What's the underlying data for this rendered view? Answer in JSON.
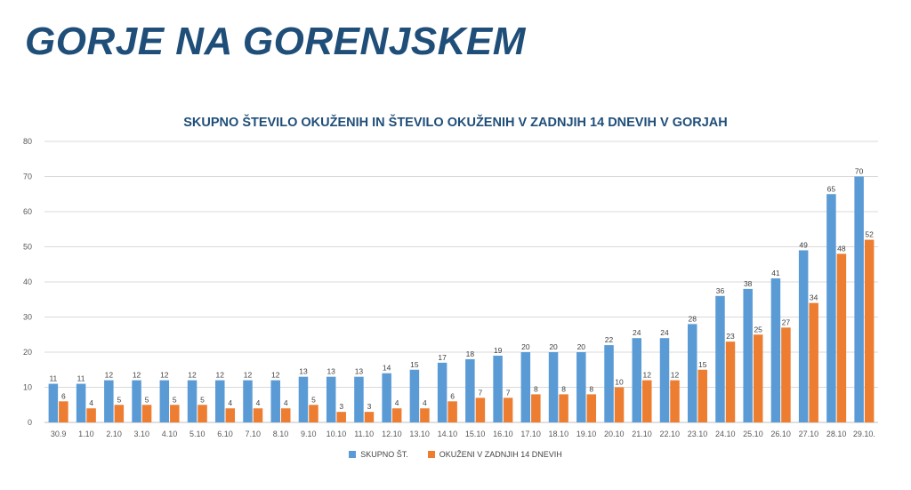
{
  "slide_title": "GORJE NA GORENJSKEM",
  "chart_data": {
    "type": "bar",
    "title": "SKUPNO ŠTEVILO OKUŽENIH IN ŠTEVILO OKUŽENIH V ZADNJIH 14 DNEVIH V GORJAH",
    "xlabel": "",
    "ylabel": "",
    "ylim": [
      0,
      80
    ],
    "yticks": [
      0,
      10,
      20,
      30,
      40,
      50,
      60,
      70,
      80
    ],
    "grid": true,
    "legend_position": "bottom",
    "categories": [
      "30.9",
      "1.10",
      "2.10",
      "3.10",
      "4.10",
      "5.10",
      "6.10",
      "7.10",
      "8.10",
      "9.10",
      "10.10",
      "11.10",
      "12.10",
      "13.10",
      "14.10",
      "15.10",
      "16.10",
      "17.10",
      "18.10",
      "19.10",
      "20.10",
      "21.10",
      "22.10",
      "23.10",
      "24.10",
      "25.10",
      "26.10",
      "27.10",
      "28.10",
      "29.10."
    ],
    "series": [
      {
        "name": "SKUPNO ŠT.",
        "color": "#5b9bd5",
        "values": [
          11,
          11,
          12,
          12,
          12,
          12,
          12,
          12,
          12,
          13,
          13,
          13,
          14,
          15,
          17,
          18,
          19,
          20,
          20,
          20,
          22,
          24,
          24,
          28,
          36,
          38,
          41,
          49,
          65,
          70
        ]
      },
      {
        "name": "OKUŽENI V ZADNJIH 14 DNEVIH",
        "color": "#ed7d31",
        "values": [
          6,
          4,
          5,
          5,
          5,
          5,
          4,
          4,
          4,
          5,
          3,
          3,
          4,
          4,
          6,
          7,
          7,
          8,
          8,
          8,
          10,
          12,
          12,
          15,
          23,
          25,
          27,
          34,
          48,
          52
        ]
      }
    ]
  }
}
